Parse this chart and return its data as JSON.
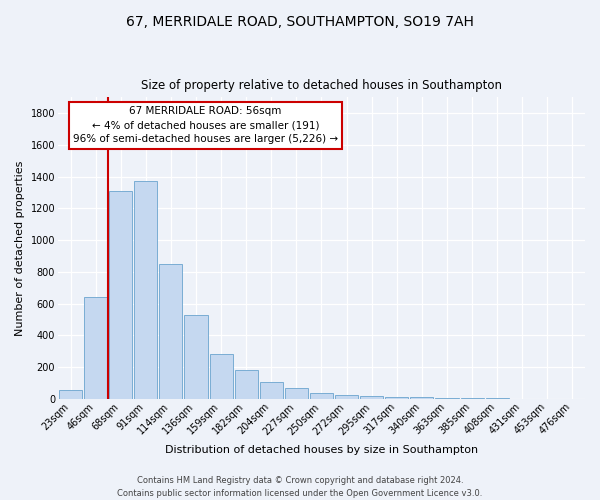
{
  "title": "67, MERRIDALE ROAD, SOUTHAMPTON, SO19 7AH",
  "subtitle": "Size of property relative to detached houses in Southampton",
  "xlabel": "Distribution of detached houses by size in Southampton",
  "ylabel": "Number of detached properties",
  "categories": [
    "23sqm",
    "46sqm",
    "68sqm",
    "91sqm",
    "114sqm",
    "136sqm",
    "159sqm",
    "182sqm",
    "204sqm",
    "227sqm",
    "250sqm",
    "272sqm",
    "295sqm",
    "317sqm",
    "340sqm",
    "363sqm",
    "385sqm",
    "408sqm",
    "431sqm",
    "453sqm",
    "476sqm"
  ],
  "values": [
    55,
    645,
    1310,
    1375,
    850,
    530,
    280,
    185,
    105,
    70,
    35,
    25,
    20,
    15,
    10,
    8,
    6,
    4,
    2,
    1,
    0
  ],
  "bar_color": "#c5d8f0",
  "bar_edge_color": "#7aadd4",
  "vline_x_index": 1.5,
  "vline_color": "#cc0000",
  "annotation_title": "67 MERRIDALE ROAD: 56sqm",
  "annotation_line1": "← 4% of detached houses are smaller (191)",
  "annotation_line2": "96% of semi-detached houses are larger (5,226) →",
  "annotation_box_facecolor": "#ffffff",
  "annotation_box_edgecolor": "#cc0000",
  "ylim": [
    0,
    1900
  ],
  "yticks": [
    0,
    200,
    400,
    600,
    800,
    1000,
    1200,
    1400,
    1600,
    1800
  ],
  "footer_line1": "Contains HM Land Registry data © Crown copyright and database right 2024.",
  "footer_line2": "Contains public sector information licensed under the Open Government Licence v3.0.",
  "bg_color": "#eef2f9",
  "grid_color": "#ffffff",
  "title_fontsize": 10,
  "subtitle_fontsize": 8.5,
  "xlabel_fontsize": 8,
  "ylabel_fontsize": 8,
  "tick_fontsize": 7,
  "footer_fontsize": 6,
  "ann_fontsize": 7.5
}
